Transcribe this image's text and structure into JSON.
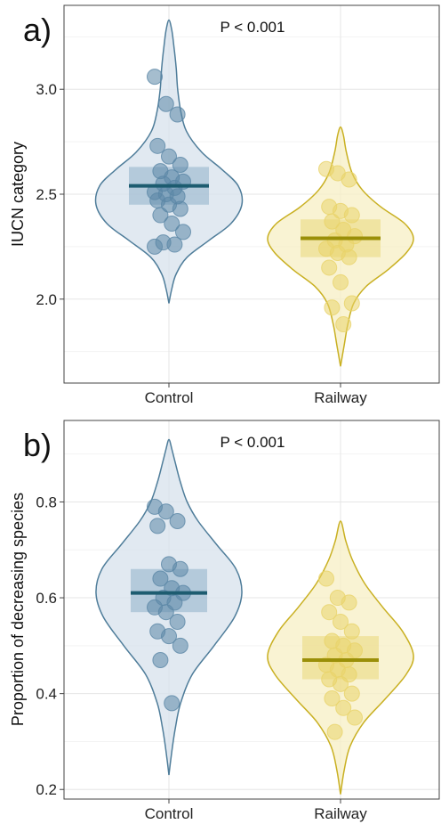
{
  "colors": {
    "control_fill": "#d7e1ec",
    "control_stroke": "#4f7d9a",
    "control_point": "#5b87a6",
    "control_median": "#1d5c70",
    "control_box": "#8fb0c8",
    "railway_fill": "#f7efc4",
    "railway_stroke": "#c9b022",
    "railway_point": "#e9d36a",
    "railway_median": "#9a8f08",
    "railway_box": "#ead77a",
    "grid_major": "#e6e6e6",
    "grid_minor": "#f3f3f3"
  },
  "chart_data": [
    {
      "type": "violin",
      "panel_label": "a)",
      "annotation": "P < 0.001",
      "ylabel": "IUCN category",
      "xlabel": "",
      "categories": [
        "Control",
        "Railway"
      ],
      "ylim": [
        1.6,
        3.4
      ],
      "yticks": [
        "2.0",
        "2.5",
        "3.0"
      ],
      "grid": true,
      "series": [
        {
          "category": "Control",
          "median": 2.54,
          "box": [
            2.45,
            2.63
          ],
          "range": [
            1.98,
            3.33
          ],
          "points": [
            3.06,
            2.93,
            2.88,
            2.73,
            2.68,
            2.64,
            2.61,
            2.58,
            2.56,
            2.55,
            2.53,
            2.51,
            2.5,
            2.49,
            2.47,
            2.45,
            2.43,
            2.4,
            2.36,
            2.32,
            2.27,
            2.26,
            2.25
          ],
          "density": [
            [
              1.98,
              0.0
            ],
            [
              2.05,
              0.04
            ],
            [
              2.12,
              0.1
            ],
            [
              2.2,
              0.25
            ],
            [
              2.28,
              0.55
            ],
            [
              2.36,
              0.85
            ],
            [
              2.45,
              1.0
            ],
            [
              2.54,
              0.95
            ],
            [
              2.62,
              0.72
            ],
            [
              2.7,
              0.45
            ],
            [
              2.8,
              0.24
            ],
            [
              2.9,
              0.16
            ],
            [
              3.0,
              0.12
            ],
            [
              3.1,
              0.1
            ],
            [
              3.2,
              0.07
            ],
            [
              3.28,
              0.04
            ],
            [
              3.33,
              0.0
            ]
          ]
        },
        {
          "category": "Railway",
          "median": 2.29,
          "box": [
            2.2,
            2.38
          ],
          "range": [
            1.68,
            2.82
          ],
          "points": [
            2.62,
            2.6,
            2.57,
            2.44,
            2.42,
            2.4,
            2.37,
            2.33,
            2.3,
            2.28,
            2.26,
            2.24,
            2.22,
            2.2,
            2.15,
            2.08,
            1.98,
            1.96,
            1.88
          ],
          "density": [
            [
              1.68,
              0.0
            ],
            [
              1.78,
              0.05
            ],
            [
              1.88,
              0.1
            ],
            [
              1.98,
              0.18
            ],
            [
              2.06,
              0.35
            ],
            [
              2.14,
              0.65
            ],
            [
              2.22,
              0.9
            ],
            [
              2.29,
              1.0
            ],
            [
              2.36,
              0.88
            ],
            [
              2.44,
              0.55
            ],
            [
              2.52,
              0.3
            ],
            [
              2.6,
              0.16
            ],
            [
              2.7,
              0.08
            ],
            [
              2.78,
              0.04
            ],
            [
              2.82,
              0.0
            ]
          ]
        }
      ]
    },
    {
      "type": "violin",
      "panel_label": "b)",
      "annotation": "P < 0.001",
      "ylabel": "Proportion of decreasing species",
      "xlabel": "",
      "categories": [
        "Control",
        "Railway"
      ],
      "ylim": [
        0.18,
        0.97
      ],
      "yticks": [
        "0.2",
        "0.4",
        "0.6",
        "0.8"
      ],
      "grid": true,
      "series": [
        {
          "category": "Control",
          "median": 0.61,
          "box": [
            0.57,
            0.66
          ],
          "range": [
            0.23,
            0.93
          ],
          "points": [
            0.79,
            0.78,
            0.76,
            0.75,
            0.67,
            0.66,
            0.64,
            0.62,
            0.61,
            0.6,
            0.59,
            0.58,
            0.57,
            0.55,
            0.53,
            0.52,
            0.5,
            0.47,
            0.38
          ],
          "density": [
            [
              0.23,
              0.0
            ],
            [
              0.28,
              0.04
            ],
            [
              0.33,
              0.09
            ],
            [
              0.38,
              0.16
            ],
            [
              0.44,
              0.32
            ],
            [
              0.5,
              0.62
            ],
            [
              0.56,
              0.9
            ],
            [
              0.61,
              1.0
            ],
            [
              0.66,
              0.92
            ],
            [
              0.71,
              0.66
            ],
            [
              0.76,
              0.4
            ],
            [
              0.8,
              0.25
            ],
            [
              0.84,
              0.16
            ],
            [
              0.88,
              0.09
            ],
            [
              0.91,
              0.04
            ],
            [
              0.93,
              0.0
            ]
          ]
        },
        {
          "category": "Railway",
          "median": 0.47,
          "box": [
            0.43,
            0.52
          ],
          "range": [
            0.19,
            0.76
          ],
          "points": [
            0.64,
            0.6,
            0.59,
            0.57,
            0.55,
            0.53,
            0.51,
            0.5,
            0.49,
            0.48,
            0.47,
            0.46,
            0.45,
            0.44,
            0.43,
            0.42,
            0.4,
            0.39,
            0.37,
            0.35,
            0.32
          ],
          "density": [
            [
              0.19,
              0.0
            ],
            [
              0.24,
              0.05
            ],
            [
              0.29,
              0.13
            ],
            [
              0.34,
              0.32
            ],
            [
              0.39,
              0.62
            ],
            [
              0.44,
              0.9
            ],
            [
              0.48,
              1.0
            ],
            [
              0.53,
              0.85
            ],
            [
              0.58,
              0.58
            ],
            [
              0.63,
              0.33
            ],
            [
              0.68,
              0.16
            ],
            [
              0.72,
              0.07
            ],
            [
              0.76,
              0.0
            ]
          ]
        }
      ]
    }
  ]
}
